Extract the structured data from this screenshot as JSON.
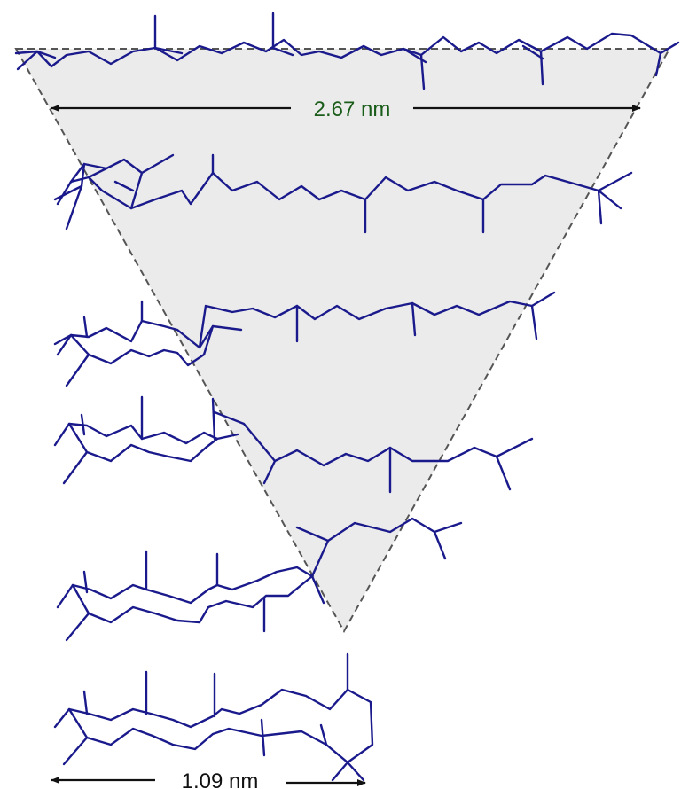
{
  "colors": {
    "molecule": "#1a1a8c",
    "funnel_fill": "#ebebeb",
    "funnel_stroke": "#555555",
    "dimension_line": "#111111",
    "top_label": "#1a5c1a",
    "bottom_label": "#111111"
  },
  "dimensions": {
    "top": "2.67 nm",
    "bottom": "1.09 nm"
  }
}
